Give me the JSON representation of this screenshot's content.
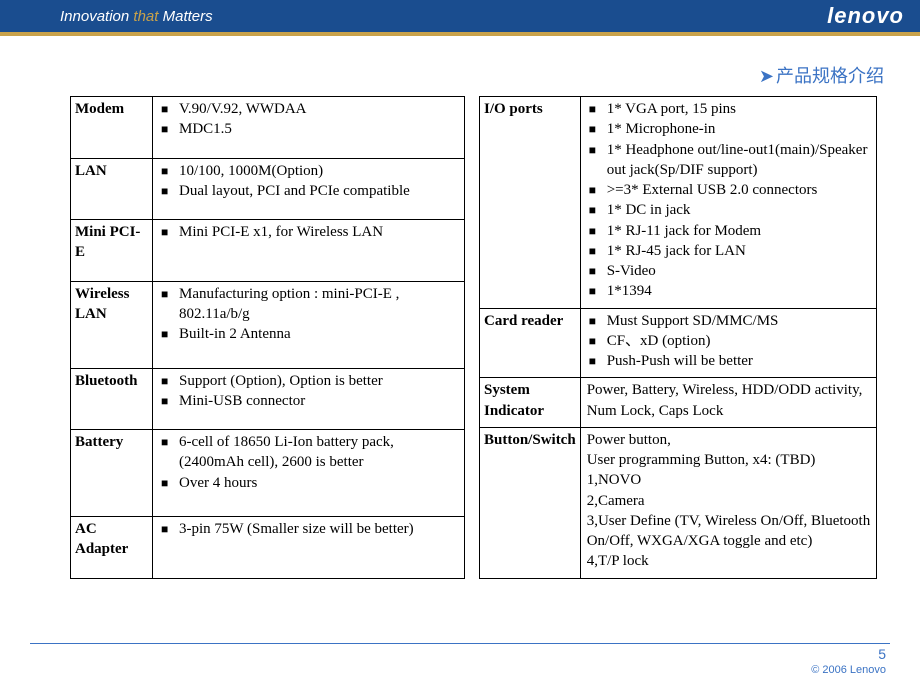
{
  "header": {
    "tagline_pre": "Innovation",
    "tagline_accent": "that",
    "tagline_post": "Matters",
    "logo": "lenovo"
  },
  "title": {
    "chevron": "➤",
    "text": "产品规格介绍"
  },
  "left_rows": [
    {
      "label": "Modem",
      "type": "list",
      "items": [
        "V.90/V.92, WWDAA",
        "MDC1.5"
      ]
    },
    {
      "label": "LAN",
      "type": "list",
      "items": [
        "10/100, 1000M(Option)",
        "Dual layout, PCI and PCIe compatible"
      ]
    },
    {
      "label": "Mini PCI-E",
      "type": "list",
      "items": [
        "Mini PCI-E x1, for Wireless LAN"
      ]
    },
    {
      "label": "Wireless LAN",
      "type": "list",
      "items": [
        "Manufacturing option : mini-PCI-E , 802.11a/b/g",
        "Built-in 2 Antenna"
      ]
    },
    {
      "label": "Bluetooth",
      "type": "list",
      "items": [
        "Support (Option), Option is better",
        "Mini-USB connector"
      ]
    },
    {
      "label": "Battery",
      "type": "list",
      "items": [
        "6-cell of 18650 Li-Ion battery pack, (2400mAh cell), 2600 is better",
        "Over 4 hours"
      ]
    },
    {
      "label": "AC Adapter",
      "type": "list",
      "items": [
        "3-pin 75W (Smaller size will be better)"
      ]
    }
  ],
  "right_rows": [
    {
      "label": "I/O ports",
      "type": "list",
      "items": [
        "1* VGA port, 15 pins",
        "1* Microphone-in",
        "1* Headphone out/line-out1(main)/Speaker out jack(Sp/DIF support)",
        ">=3* External USB 2.0 connectors",
        "1* DC in jack",
        "1* RJ-11 jack for Modem",
        "1* RJ-45 jack for LAN",
        "S-Video",
        "1*1394"
      ]
    },
    {
      "label": "Card reader",
      "type": "list",
      "items": [
        "Must Support SD/MMC/MS",
        "CF、xD (option)",
        "Push-Push will be better"
      ]
    },
    {
      "label": "System Indicator",
      "type": "plain",
      "text": "Power, Battery, Wireless, HDD/ODD activity, Num Lock, Caps Lock"
    },
    {
      "label": "Button/Switch",
      "type": "plain",
      "text": "Power button,\nUser programming Button, x4: (TBD)\n1,NOVO\n2,Camera\n3,User Define (TV, Wireless On/Off, Bluetooth On/Off, WXGA/XGA toggle and etc)\n4,T/P lock"
    }
  ],
  "footer": {
    "page": "5",
    "copyright": "© 2006 Lenovo"
  },
  "colors": {
    "header_bg": "#1a4d8f",
    "accent_gold": "#c9a24a",
    "title_blue": "#3b73c4"
  }
}
